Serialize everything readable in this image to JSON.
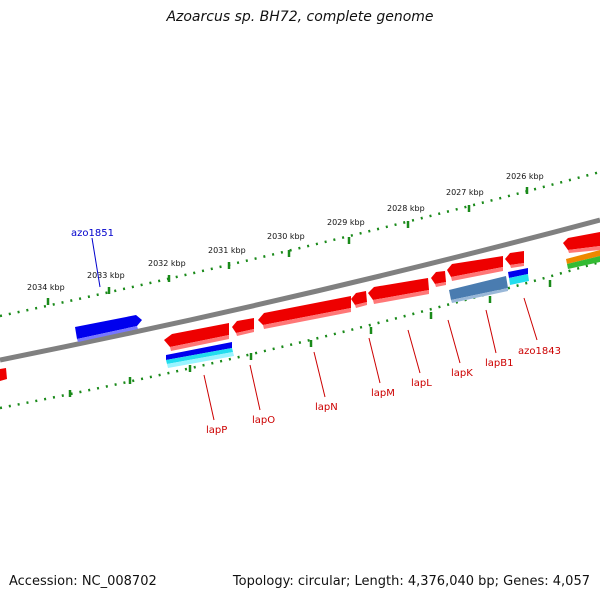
{
  "title": "Azoarcus sp. BH72, complete genome",
  "footer": {
    "accession": "Accession: NC_008702",
    "summary": "Topology: circular; Length: 4,376,040 bp; Genes: 4,057"
  },
  "colors": {
    "backbone": "#808080",
    "tick": "#1a8a1a",
    "forward_gene": "#0000ee",
    "reverse_gene": "#ee0000",
    "label_blue": "#0000cc",
    "label_red": "#cc0000",
    "operon_blue": "#4a7cb0",
    "cyan": "#22ddee",
    "orange": "#ee8800",
    "green": "#33bb33"
  },
  "ticks": [
    "2026 kbp",
    "2027 kbp",
    "2028 kbp",
    "2029 kbp",
    "2030 kbp",
    "2031 kbp",
    "2032 kbp",
    "2033 kbp",
    "2034 kbp"
  ],
  "gene_labels": {
    "forward": [
      "azo1851"
    ],
    "reverse": [
      "lapP",
      "lapO",
      "lapN",
      "lapM",
      "lapL",
      "lapK",
      "lapB1",
      "azo1843"
    ]
  }
}
